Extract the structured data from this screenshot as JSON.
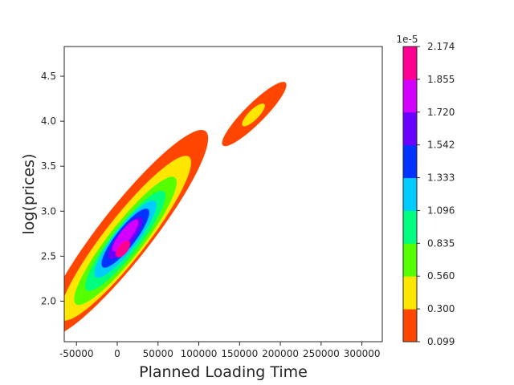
{
  "chart_data": {
    "type": "contour",
    "title": "",
    "xlabel": "Planned Loading Time",
    "ylabel": "log(prices)",
    "xlim": [
      -65000,
      325000
    ],
    "ylim": [
      1.55,
      4.83
    ],
    "x_ticks": [
      -50000,
      0,
      50000,
      100000,
      150000,
      200000,
      250000,
      300000
    ],
    "x_tick_labels": [
      "-50000",
      "0",
      "50000",
      "100000",
      "150000",
      "200000",
      "250000",
      "300000"
    ],
    "y_ticks": [
      2.0,
      2.5,
      3.0,
      3.5,
      4.0,
      4.5
    ],
    "y_tick_labels": [
      "2.0",
      "2.5",
      "3.0",
      "3.5",
      "4.0",
      "4.5"
    ],
    "grid": false,
    "colorbar": {
      "multiplier_label": "1e-5",
      "levels": [
        0.099,
        0.3,
        0.56,
        0.835,
        1.096,
        1.333,
        1.542,
        1.72,
        1.855,
        2.174
      ],
      "level_labels": [
        "0.099",
        "0.300",
        "0.560",
        "0.835",
        "1.096",
        "1.333",
        "1.542",
        "1.720",
        "1.855",
        "2.174"
      ],
      "colors": [
        "#ff4500",
        "#ffe600",
        "#55ff00",
        "#00ff7f",
        "#00ccff",
        "#0033ff",
        "#6a00ff",
        "#d400ff",
        "#ff0090"
      ]
    },
    "clusters": [
      {
        "center": [
          12000,
          2.65
        ],
        "peak_density_1e5": 2.1,
        "peak_band": 8,
        "contours": [
          {
            "band": 0,
            "center": [
              10000,
              2.75
            ],
            "half_width_major": 1.7,
            "half_width_minor": 0.34
          },
          {
            "band": 1,
            "center": [
              10000,
              2.7
            ],
            "half_width_major": 1.35,
            "half_width_minor": 0.27
          },
          {
            "band": 2,
            "center": [
              10000,
              2.67
            ],
            "half_width_major": 1.05,
            "half_width_minor": 0.22
          },
          {
            "band": 3,
            "center": [
              10000,
              2.67
            ],
            "half_width_major": 0.82,
            "half_width_minor": 0.18
          },
          {
            "band": 4,
            "center": [
              10000,
              2.69
            ],
            "half_width_major": 0.63,
            "half_width_minor": 0.15
          },
          {
            "band": 5,
            "center": [
              10000,
              2.7
            ],
            "half_width_major": 0.48,
            "half_width_minor": 0.125
          },
          {
            "band": 6,
            "center": [
              10000,
              2.7
            ],
            "half_width_major": 0.34,
            "half_width_minor": 0.1
          },
          {
            "band": 7,
            "center": [
              10000,
              2.73
            ],
            "half_width_major": 0.26,
            "half_width_minor": 0.075
          },
          {
            "band": 8,
            "center": [
              7000,
              2.58
            ],
            "half_width_major": 0.13,
            "half_width_minor": 0.065
          }
        ]
      },
      {
        "center": [
          167000,
          4.07
        ],
        "peak_density_1e5": 0.45,
        "peak_band": 1,
        "contours": [
          {
            "band": 0,
            "center": [
              168000,
              4.08
            ],
            "half_width_major": 0.58,
            "half_width_minor": 0.13
          },
          {
            "band": 1,
            "center": [
              167000,
              4.07
            ],
            "half_width_major": 0.2,
            "half_width_minor": 0.065
          }
        ]
      }
    ]
  }
}
